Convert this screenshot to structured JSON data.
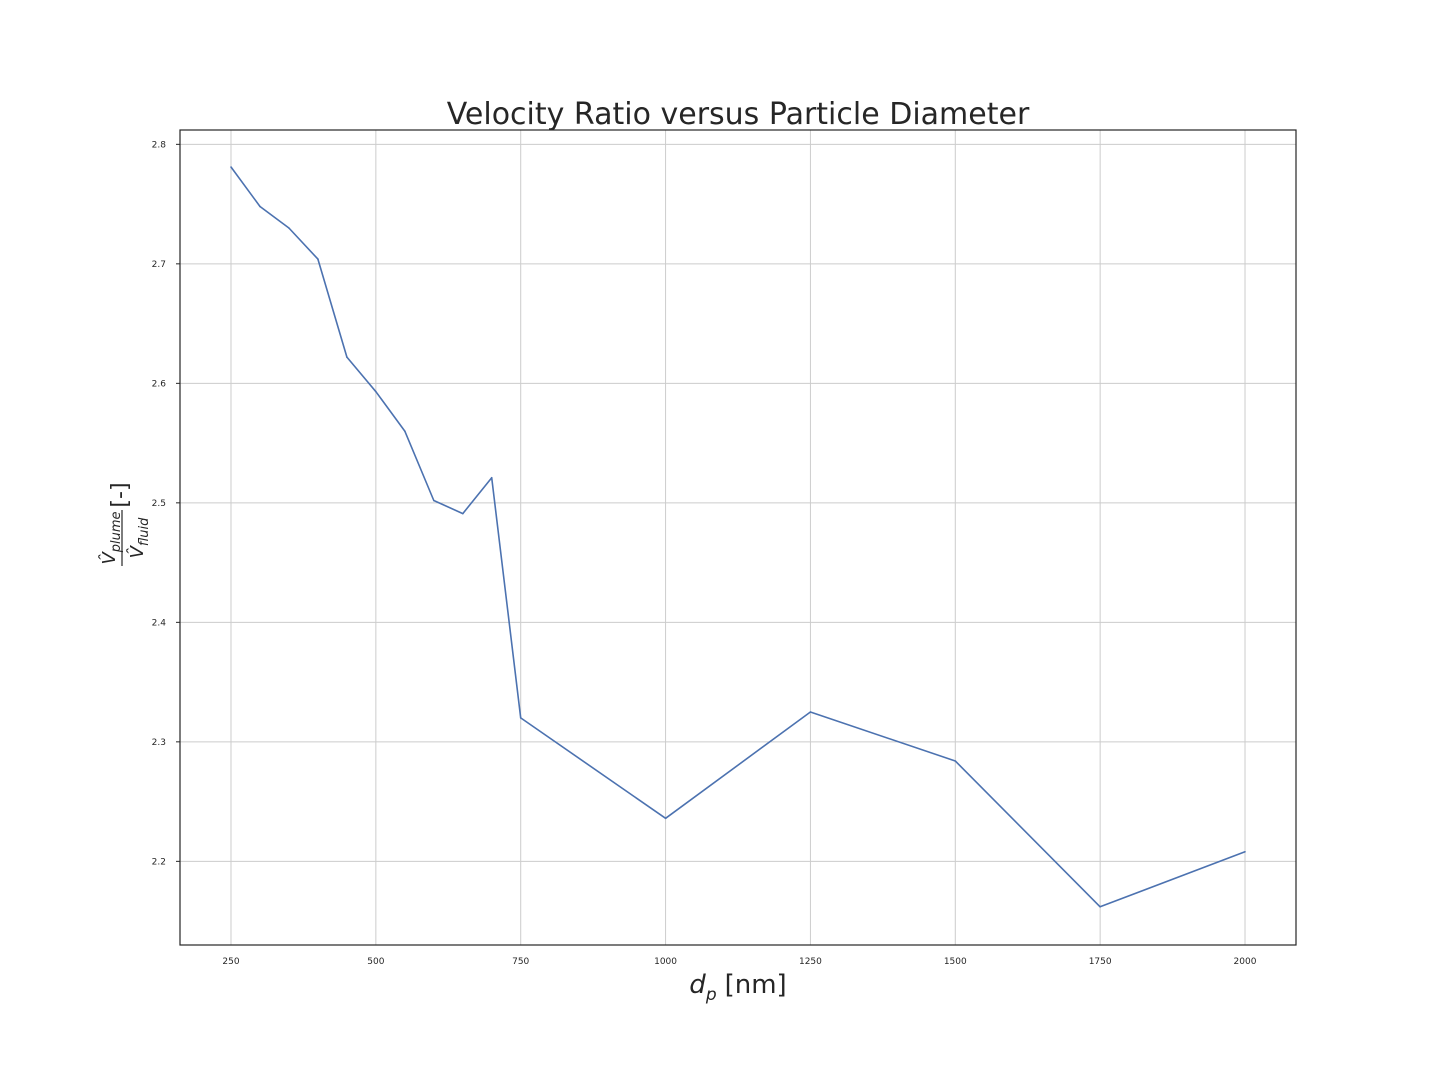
{
  "chart_data": {
    "type": "line",
    "title": "Velocity Ratio versus Particle Diameter",
    "xlabel": {
      "main": "d",
      "sub": "p",
      "unit": "[nm]"
    },
    "ylabel": {
      "num_main": "V̂",
      "num_sub": "plume",
      "den_main": "V̂",
      "den_sub": "fluid",
      "unit": "[-]"
    },
    "xlim": [
      162,
      2088
    ],
    "ylim": [
      2.13,
      2.812
    ],
    "xticks": [
      250,
      500,
      750,
      1000,
      1250,
      1500,
      1750,
      2000
    ],
    "yticks": [
      2.2,
      2.3,
      2.4,
      2.5,
      2.6,
      2.7,
      2.8
    ],
    "xtick_labels": [
      "250",
      "500",
      "750",
      "1000",
      "1250",
      "1500",
      "1750",
      "2000"
    ],
    "ytick_labels": [
      "2.2",
      "2.3",
      "2.4",
      "2.5",
      "2.6",
      "2.7",
      "2.8"
    ],
    "grid": true,
    "series": [
      {
        "color": "#4c72b0",
        "x": [
          250,
          300,
          350,
          400,
          450,
          500,
          550,
          600,
          650,
          700,
          750,
          1000,
          1250,
          1500,
          1750,
          2000
        ],
        "y": [
          2.781,
          2.748,
          2.73,
          2.704,
          2.622,
          2.593,
          2.56,
          2.502,
          2.491,
          2.521,
          2.32,
          2.236,
          2.325,
          2.284,
          2.162,
          2.208
        ]
      }
    ]
  }
}
